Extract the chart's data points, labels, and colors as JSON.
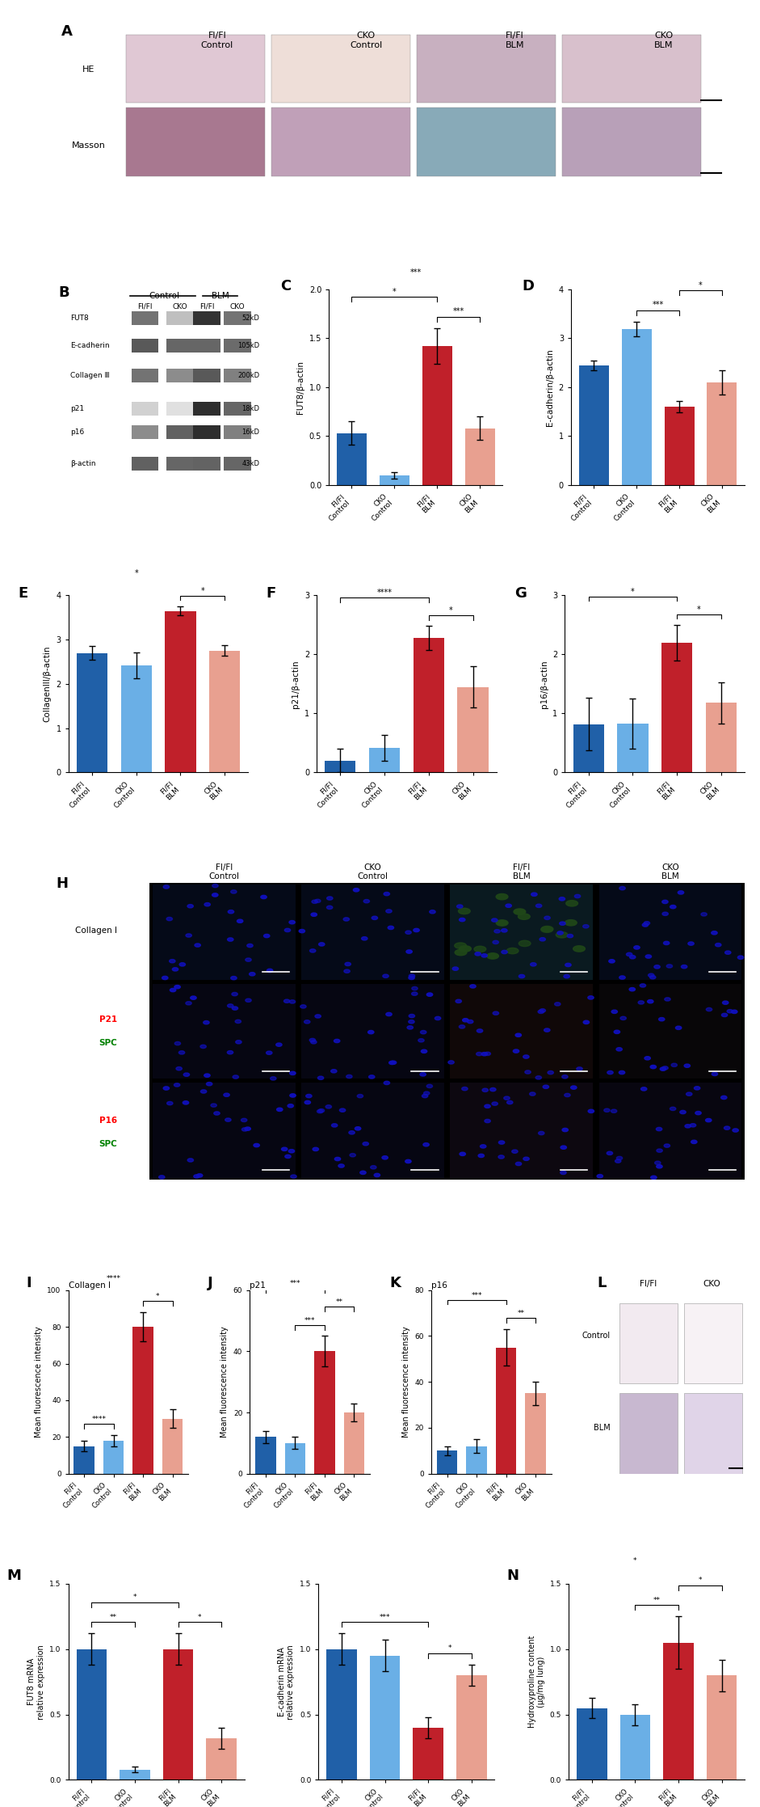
{
  "categories": [
    "Fl/Fl Control",
    "CKO Control",
    "Fl/Fl BLM",
    "CKO BLM"
  ],
  "bar_colors_dark_blue": "#2060a8",
  "bar_colors_light_blue": "#6aafe6",
  "bar_colors_dark_red": "#c0202a",
  "bar_colors_light_red": "#e8a090",
  "C_values": [
    0.53,
    0.1,
    1.42,
    0.58
  ],
  "C_errors": [
    0.12,
    0.03,
    0.18,
    0.12
  ],
  "C_ylabel": "FUT8/β-actin",
  "C_ylim": [
    0,
    2.0
  ],
  "C_yticks": [
    0.0,
    0.5,
    1.0,
    1.5,
    2.0
  ],
  "C_sig": [
    [
      "*",
      0,
      2
    ],
    [
      "***",
      0,
      3
    ],
    [
      "***",
      2,
      3
    ]
  ],
  "D_values": [
    2.45,
    3.18,
    1.6,
    2.1
  ],
  "D_errors": [
    0.1,
    0.15,
    0.12,
    0.25
  ],
  "D_ylabel": "E-cadherin/β-actin",
  "D_ylim": [
    0,
    4
  ],
  "D_yticks": [
    0,
    1,
    2,
    3,
    4
  ],
  "D_sig": [
    [
      "***",
      1,
      2
    ],
    [
      "*",
      2,
      3
    ]
  ],
  "E_values": [
    2.7,
    2.42,
    3.65,
    2.75
  ],
  "E_errors": [
    0.15,
    0.3,
    0.1,
    0.12
  ],
  "E_ylabel": "CollagenIII/β-actin",
  "E_ylim": [
    0,
    4
  ],
  "E_yticks": [
    0,
    1,
    2,
    3,
    4
  ],
  "E_sig": [
    [
      "*",
      0,
      2
    ],
    [
      "*",
      2,
      3
    ]
  ],
  "F_values": [
    0.2,
    0.42,
    2.28,
    1.45
  ],
  "F_errors": [
    0.2,
    0.22,
    0.2,
    0.35
  ],
  "F_ylabel": "p21/β-actin",
  "F_ylim": [
    0,
    3
  ],
  "F_yticks": [
    0,
    1,
    2,
    3
  ],
  "F_sig": [
    [
      "****",
      0,
      2
    ],
    [
      "*",
      2,
      3
    ]
  ],
  "G_values": [
    0.82,
    0.83,
    2.2,
    1.18
  ],
  "G_errors": [
    0.45,
    0.42,
    0.3,
    0.35
  ],
  "G_ylabel": "p16/β-actin",
  "G_ylim": [
    0,
    3
  ],
  "G_yticks": [
    0,
    1,
    2,
    3
  ],
  "G_sig": [
    [
      "*",
      0,
      2
    ],
    [
      "*",
      2,
      3
    ]
  ],
  "I_values": [
    15,
    18,
    80,
    30
  ],
  "I_errors": [
    3,
    3,
    8,
    5
  ],
  "I_ylabel": "Mean fluorescence intensity",
  "I_title": "Collagen I",
  "I_ylim": [
    0,
    100
  ],
  "I_yticks": [
    0,
    20,
    40,
    60,
    80,
    100
  ],
  "I_sig": [
    [
      "****",
      0,
      1
    ],
    [
      "****",
      0,
      2
    ],
    [
      "*",
      2,
      3
    ]
  ],
  "J_values": [
    12,
    10,
    40,
    20
  ],
  "J_errors": [
    2,
    2,
    5,
    3
  ],
  "J_ylabel": "Mean fluorescence intensity",
  "J_title": "p21",
  "J_ylim": [
    0,
    60
  ],
  "J_yticks": [
    0,
    20,
    40,
    60
  ],
  "J_sig": [
    [
      "***",
      0,
      2
    ],
    [
      "***",
      1,
      2
    ],
    [
      "**",
      2,
      3
    ]
  ],
  "K_values": [
    10,
    12,
    55,
    35
  ],
  "K_errors": [
    2,
    3,
    8,
    5
  ],
  "K_ylabel": "Mean fluorescence intensity",
  "K_title": "p16",
  "K_ylim": [
    0,
    80
  ],
  "K_yticks": [
    0,
    20,
    40,
    60,
    80
  ],
  "K_sig": [
    [
      "***",
      0,
      2
    ],
    [
      "**",
      2,
      3
    ]
  ],
  "M1_values": [
    1.0,
    0.08,
    1.0,
    0.32
  ],
  "M1_errors": [
    0.12,
    0.02,
    0.12,
    0.08
  ],
  "M1_ylabel": "FUT8 mRNA\nrelative expression",
  "M1_ylim": [
    0,
    1.5
  ],
  "M1_yticks": [
    0,
    0.5,
    1.0,
    1.5
  ],
  "M1_sig": [
    [
      "**",
      0,
      1
    ],
    [
      "*",
      0,
      2
    ],
    [
      "*",
      2,
      3
    ]
  ],
  "M2_values": [
    1.0,
    0.95,
    0.4,
    0.8
  ],
  "M2_errors": [
    0.12,
    0.12,
    0.08,
    0.08
  ],
  "M2_ylabel": "E-cadherin mRNA\nrelative expression",
  "M2_ylim": [
    0,
    1.5
  ],
  "M2_yticks": [
    0,
    0.5,
    1.0,
    1.5
  ],
  "M2_sig": [
    [
      "***",
      0,
      2
    ],
    [
      "*",
      2,
      3
    ]
  ],
  "N_values": [
    0.55,
    0.5,
    1.05,
    0.8
  ],
  "N_errors": [
    0.08,
    0.08,
    0.2,
    0.12
  ],
  "N_ylabel": "Hydroxyproline content\n(μg/mg lung)",
  "N_ylim": [
    0,
    1.5
  ],
  "N_yticks": [
    0,
    0.5,
    1.0,
    1.5
  ],
  "N_sig": [
    [
      "*",
      0,
      2
    ],
    [
      "**",
      1,
      2
    ],
    [
      "*",
      2,
      3
    ]
  ],
  "background_color": "#ffffff",
  "text_color": "#000000"
}
